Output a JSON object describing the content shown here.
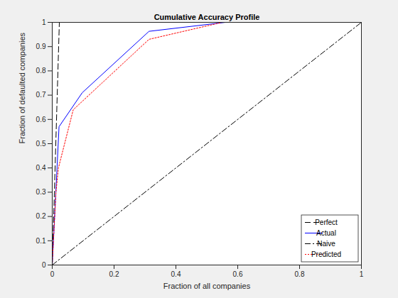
{
  "chart_data": {
    "type": "line",
    "title": "Cumulative Accuracy Profile",
    "x_label": "Fraction of all companies",
    "y_label": "Fraction of defaulted companies",
    "xlim": [
      0,
      1
    ],
    "ylim": [
      0,
      1
    ],
    "xticks": [
      0,
      0.2,
      0.4,
      0.6,
      0.8,
      1
    ],
    "yticks": [
      0,
      0.1,
      0.2,
      0.3,
      0.4,
      0.5,
      0.6,
      0.7,
      0.8,
      0.9,
      1
    ],
    "legend": "southeast",
    "series": [
      {
        "name": "Perfect",
        "color": "#000000",
        "line_style": "dashed",
        "x": [
          0,
          0.023,
          1
        ],
        "values": [
          0,
          1,
          1
        ]
      },
      {
        "name": "Actual",
        "color": "#0000ff",
        "line_style": "solid",
        "x": [
          0,
          0.022,
          0.097,
          0.313,
          0.56,
          1
        ],
        "values": [
          0,
          0.57,
          0.71,
          0.963,
          1,
          1
        ]
      },
      {
        "name": "Naive",
        "color": "#000000",
        "line_style": "dashdot",
        "x": [
          0,
          1
        ],
        "values": [
          0,
          1
        ]
      },
      {
        "name": "Predicted",
        "color": "#ff0000",
        "line_style": "dotted",
        "x": [
          0,
          0.012,
          0.02,
          0.068,
          0.313,
          0.55,
          1
        ],
        "values": [
          0,
          0.3,
          0.4,
          0.64,
          0.93,
          1,
          1
        ]
      }
    ]
  }
}
